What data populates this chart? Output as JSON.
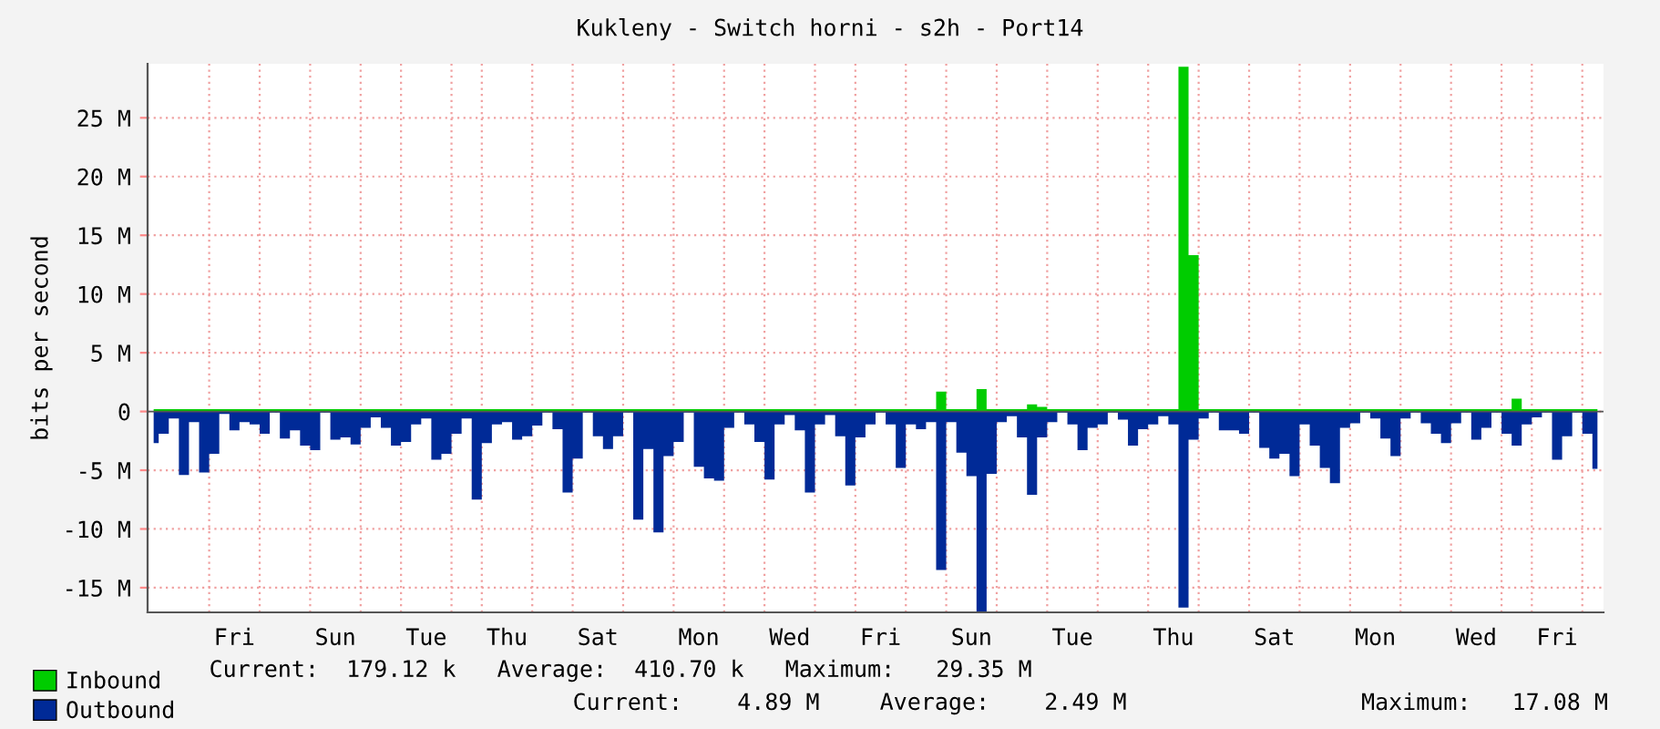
{
  "chart_data": {
    "type": "area",
    "title": "Kukleny - Switch horni - s2h - Port14",
    "ylabel": "bits per second",
    "categories": [
      null,
      null,
      null,
      null,
      null,
      null,
      null,
      null,
      "Fri",
      null,
      null,
      null,
      null,
      null,
      null,
      null,
      null,
      null,
      "Sun",
      null,
      null,
      null,
      null,
      null,
      null,
      null,
      null,
      "Tue",
      null,
      null,
      null,
      null,
      null,
      null,
      null,
      "Thu",
      null,
      null,
      null,
      null,
      null,
      null,
      null,
      null,
      "Sat",
      null,
      null,
      null,
      null,
      null,
      null,
      null,
      null,
      null,
      "Mon",
      null,
      null,
      null,
      null,
      null,
      null,
      null,
      null,
      "Wed",
      null,
      null,
      null,
      null,
      null,
      null,
      null,
      null,
      "Fri",
      null,
      null,
      null,
      null,
      null,
      null,
      null,
      null,
      "Sun",
      null,
      null,
      null,
      null,
      null,
      null,
      null,
      null,
      null,
      "Tue",
      null,
      null,
      null,
      null,
      null,
      null,
      null,
      null,
      null,
      "Thu",
      null,
      null,
      null,
      null,
      null,
      null,
      null,
      null,
      null,
      "Sat",
      null,
      null,
      null,
      null,
      null,
      null,
      null,
      null,
      null,
      "Mon",
      null,
      null,
      null,
      null,
      null,
      null,
      null,
      null,
      null,
      "Wed",
      null,
      null,
      null,
      null,
      null,
      null,
      null,
      "Fri",
      null,
      null,
      null,
      null
    ],
    "series": [
      {
        "name": "Inbound",
        "color": "#00cc00",
        "values": [
          0.2,
          0.2,
          0.2,
          0.2,
          0.2,
          0.2,
          0.2,
          0.2,
          0.2,
          0.2,
          0.2,
          0.2,
          0.2,
          0.2,
          0.2,
          0.2,
          0.2,
          0.2,
          0.2,
          0.2,
          0.2,
          0.2,
          0.2,
          0.2,
          0.2,
          0.2,
          0.2,
          0.2,
          0.2,
          0.2,
          0.2,
          0.2,
          0.2,
          0.2,
          0.2,
          0.2,
          0.2,
          0.2,
          0.2,
          0.2,
          0.2,
          0.2,
          0.2,
          0.2,
          0.2,
          0.2,
          0.2,
          0.2,
          0.2,
          0.2,
          0.2,
          0.2,
          0.2,
          0.2,
          0.2,
          0.2,
          0.2,
          0.2,
          0.2,
          0.2,
          0.2,
          0.2,
          0.2,
          0.2,
          0.2,
          0.2,
          0.2,
          0.2,
          0.2,
          0.2,
          0.2,
          0.2,
          0.2,
          0.2,
          0.2,
          0.2,
          0.2,
          0.2,
          1.7,
          0.2,
          0.2,
          0.2,
          1.9,
          0.2,
          0.2,
          0.2,
          0.2,
          0.6,
          0.4,
          0.2,
          0.2,
          0.2,
          0.2,
          0.2,
          0.2,
          0.2,
          0.2,
          0.2,
          0.2,
          0.2,
          0.2,
          0.2,
          29.35,
          13.3,
          0.2,
          0.2,
          0.2,
          0.2,
          0.2,
          0.2,
          0.2,
          0.2,
          0.2,
          0.2,
          0.2,
          0.2,
          0.2,
          0.2,
          0.2,
          0.2,
          0.2,
          0.2,
          0.2,
          0.2,
          0.2,
          0.2,
          0.2,
          0.2,
          0.2,
          0.2,
          0.2,
          0.2,
          0.2,
          0.2,
          0.2,
          1.1,
          0.2,
          0.2,
          0.2,
          0.2,
          0.2,
          0.2,
          0.2,
          0.2
        ]
      },
      {
        "name": "Outbound",
        "color": "#002a97",
        "values": [
          -2.7,
          -1.9,
          -0.6,
          -5.4,
          -0.9,
          -5.2,
          -3.6,
          -0.2,
          -1.6,
          -0.9,
          -1.1,
          -1.9,
          -0.1,
          -2.3,
          -1.6,
          -2.9,
          -3.3,
          -0.1,
          -2.4,
          -2.2,
          -2.8,
          -1.4,
          -0.5,
          -1.4,
          -2.9,
          -2.6,
          -1.1,
          -0.6,
          -4.1,
          -3.6,
          -1.9,
          -0.6,
          -7.5,
          -2.7,
          -1.1,
          -0.9,
          -2.4,
          -2.1,
          -1.2,
          -0.1,
          -1.5,
          -6.9,
          -4.0,
          -0.1,
          -2.1,
          -3.2,
          -2.1,
          -0.1,
          -9.2,
          -3.2,
          -10.3,
          -3.8,
          -2.6,
          -0.1,
          -4.7,
          -5.7,
          -5.9,
          -1.4,
          -0.1,
          -1.1,
          -2.6,
          -5.8,
          -1.1,
          -0.3,
          -1.6,
          -6.9,
          -1.1,
          -0.3,
          -2.1,
          -6.3,
          -2.2,
          -1.1,
          -0.1,
          -1.1,
          -4.8,
          -1.1,
          -1.5,
          -0.9,
          -13.5,
          -0.9,
          -3.5,
          -5.5,
          -17.08,
          -5.3,
          -0.9,
          -0.4,
          -2.2,
          -7.1,
          -2.2,
          -0.9,
          -0.1,
          -1.1,
          -3.3,
          -1.4,
          -1.1,
          -0.1,
          -0.7,
          -2.9,
          -1.5,
          -1.1,
          -0.4,
          -1.1,
          -16.7,
          -2.4,
          -0.6,
          -0.1,
          -1.6,
          -1.6,
          -1.9,
          -0.1,
          -3.1,
          -4.0,
          -3.6,
          -5.5,
          -1.1,
          -2.9,
          -4.8,
          -6.1,
          -1.4,
          -1.0,
          -0.1,
          -0.6,
          -2.3,
          -3.8,
          -0.6,
          -0.1,
          -1.0,
          -1.9,
          -2.7,
          -1.0,
          -0.1,
          -2.4,
          -1.4,
          -0.1,
          -1.9,
          -2.9,
          -1.1,
          -0.5,
          -0.1,
          -4.1,
          -2.1,
          -0.1,
          -1.9,
          -4.89
        ]
      }
    ],
    "ylim": [
      -17.1,
      29.6
    ],
    "yticks": [
      {
        "value": -15,
        "label": "-15 M"
      },
      {
        "value": -10,
        "label": "-10 M"
      },
      {
        "value": -5,
        "label": "-5 M"
      },
      0,
      {
        "value": 5,
        "label": "5 M"
      },
      {
        "value": 10,
        "label": "10 M"
      },
      {
        "value": 15,
        "label": "15 M"
      },
      {
        "value": 20,
        "label": "20 M"
      },
      {
        "value": 25,
        "label": "25 M"
      }
    ],
    "grid": true,
    "legend": "bottom left",
    "annotations": [
      "Current:  179.12 k   Average:  410.70 k   Maximum:   29.35 M",
      "Current:    4.89 M",
      "Average:    2.49 M",
      "Maximum:   17.08 M"
    ]
  }
}
